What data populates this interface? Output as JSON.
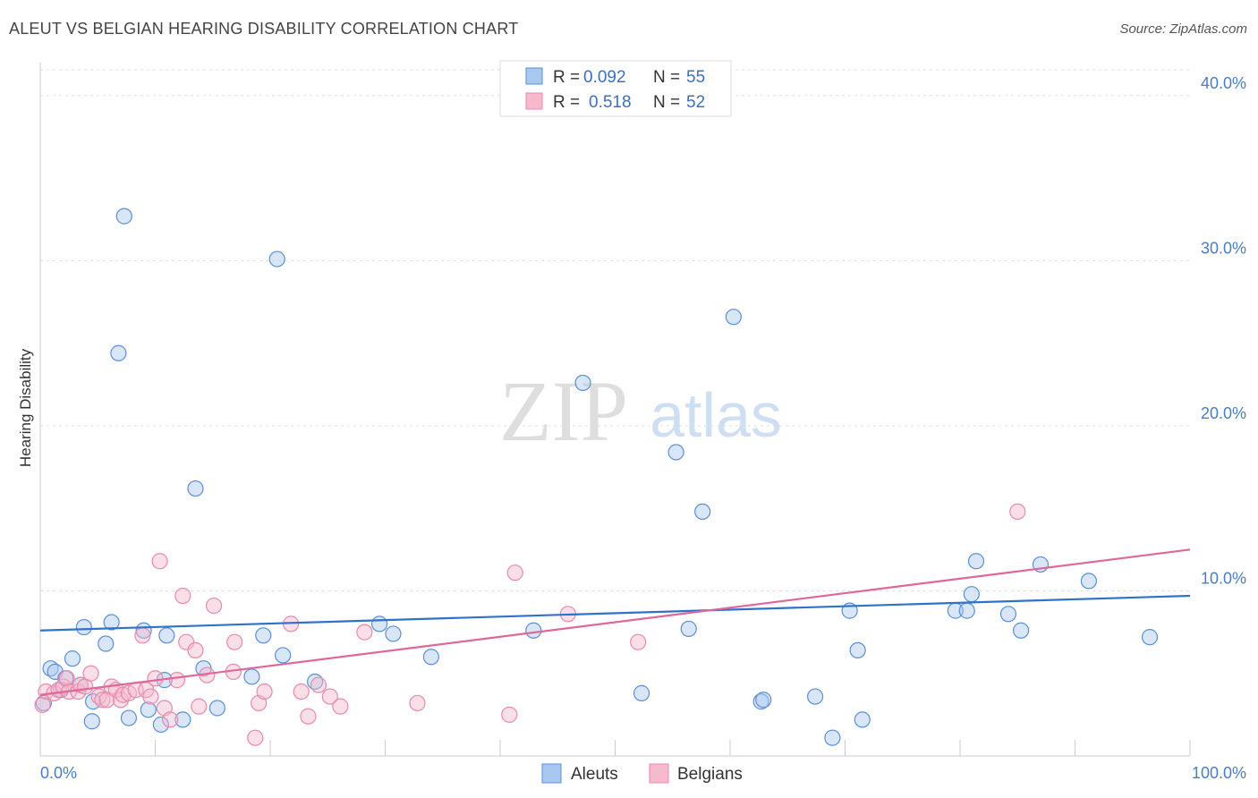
{
  "header": {
    "title": "ALEUT VS BELGIAN HEARING DISABILITY CORRELATION CHART",
    "source": "Source: ZipAtlas.com"
  },
  "watermark": {
    "zip": "ZIP",
    "atlas": "atlas"
  },
  "colors": {
    "aleut_fill": "#a9c8f0",
    "aleut_stroke": "#5b8fd6",
    "aleut_line": "#2f72c9",
    "belgian_fill": "#f7b9cc",
    "belgian_stroke": "#e88aa9",
    "belgian_line": "#e0679a",
    "tick_text": "#4a7cc7"
  },
  "legend": {
    "rows": [
      {
        "r_label": "R =",
        "r_value": "0.092",
        "n_label": "N =",
        "n_value": "55"
      },
      {
        "r_label": "R =",
        "r_value": "0.518",
        "n_label": "N =",
        "n_value": "52"
      }
    ]
  },
  "chart_data": {
    "type": "scatter",
    "title": "ALEUT VS BELGIAN HEARING DISABILITY CORRELATION CHART",
    "xlabel": "",
    "ylabel": "Hearing Disability",
    "xlim": [
      0,
      100
    ],
    "ylim": [
      0,
      42
    ],
    "x_tick_labels": [
      "0.0%",
      "100.0%"
    ],
    "y_ticks": [
      10,
      20,
      30,
      40
    ],
    "y_tick_labels": [
      "10.0%",
      "20.0%",
      "30.0%",
      "40.0%"
    ],
    "grid": true,
    "legend_position": "top-center",
    "series": [
      {
        "name": "Aleuts",
        "r": 0.092,
        "n": 55,
        "trend": {
          "x": [
            0,
            100
          ],
          "y": [
            7.6,
            9.7
          ]
        },
        "points": [
          [
            0.3,
            3.2
          ],
          [
            0.9,
            5.3
          ],
          [
            1.3,
            5.1
          ],
          [
            1.8,
            4.0
          ],
          [
            2.2,
            4.7
          ],
          [
            2.8,
            5.9
          ],
          [
            3.5,
            4.3
          ],
          [
            3.8,
            7.8
          ],
          [
            4.5,
            2.1
          ],
          [
            4.6,
            3.3
          ],
          [
            5.7,
            6.8
          ],
          [
            6.2,
            8.1
          ],
          [
            6.8,
            24.4
          ],
          [
            7.3,
            32.7
          ],
          [
            7.7,
            2.3
          ],
          [
            9.0,
            7.6
          ],
          [
            9.4,
            2.8
          ],
          [
            10.5,
            1.9
          ],
          [
            10.8,
            4.6
          ],
          [
            11.0,
            7.3
          ],
          [
            12.4,
            2.2
          ],
          [
            13.5,
            16.2
          ],
          [
            14.2,
            5.3
          ],
          [
            15.4,
            2.9
          ],
          [
            18.4,
            4.8
          ],
          [
            19.4,
            7.3
          ],
          [
            20.6,
            30.1
          ],
          [
            21.1,
            6.1
          ],
          [
            23.9,
            4.5
          ],
          [
            29.5,
            8.0
          ],
          [
            30.7,
            7.4
          ],
          [
            34.0,
            6.0
          ],
          [
            42.9,
            7.6
          ],
          [
            47.2,
            22.6
          ],
          [
            52.3,
            3.8
          ],
          [
            55.3,
            18.4
          ],
          [
            56.4,
            7.7
          ],
          [
            57.6,
            14.8
          ],
          [
            60.3,
            26.6
          ],
          [
            62.7,
            3.3
          ],
          [
            62.9,
            3.4
          ],
          [
            67.4,
            3.6
          ],
          [
            68.9,
            1.1
          ],
          [
            70.4,
            8.8
          ],
          [
            71.1,
            6.4
          ],
          [
            71.5,
            2.2
          ],
          [
            79.6,
            8.8
          ],
          [
            80.6,
            8.8
          ],
          [
            81.0,
            9.8
          ],
          [
            81.4,
            11.8
          ],
          [
            84.2,
            8.6
          ],
          [
            85.3,
            7.6
          ],
          [
            87.0,
            11.6
          ],
          [
            91.2,
            10.6
          ],
          [
            96.5,
            7.2
          ]
        ]
      },
      {
        "name": "Belgians",
        "r": 0.518,
        "n": 52,
        "trend": {
          "x": [
            0,
            100
          ],
          "y": [
            3.7,
            12.5
          ]
        },
        "points": [
          [
            0.2,
            3.1
          ],
          [
            0.5,
            3.9
          ],
          [
            1.2,
            3.8
          ],
          [
            1.6,
            4.0
          ],
          [
            2.0,
            4.2
          ],
          [
            2.3,
            4.7
          ],
          [
            2.5,
            3.9
          ],
          [
            3.3,
            3.9
          ],
          [
            3.5,
            4.3
          ],
          [
            3.9,
            4.2
          ],
          [
            4.4,
            5.0
          ],
          [
            5.1,
            3.6
          ],
          [
            5.4,
            3.4
          ],
          [
            5.8,
            3.4
          ],
          [
            6.2,
            4.2
          ],
          [
            6.6,
            4.0
          ],
          [
            7.0,
            3.4
          ],
          [
            7.2,
            3.7
          ],
          [
            7.7,
            3.8
          ],
          [
            8.3,
            4.0
          ],
          [
            8.9,
            7.3
          ],
          [
            9.2,
            4.0
          ],
          [
            9.6,
            3.6
          ],
          [
            10.0,
            4.7
          ],
          [
            10.4,
            11.8
          ],
          [
            10.8,
            2.9
          ],
          [
            11.3,
            2.2
          ],
          [
            11.9,
            4.6
          ],
          [
            12.4,
            9.7
          ],
          [
            12.7,
            6.9
          ],
          [
            13.5,
            6.4
          ],
          [
            13.8,
            3.0
          ],
          [
            14.5,
            4.9
          ],
          [
            15.1,
            9.1
          ],
          [
            16.8,
            5.1
          ],
          [
            16.9,
            6.9
          ],
          [
            18.7,
            1.1
          ],
          [
            19.0,
            3.2
          ],
          [
            19.5,
            3.9
          ],
          [
            21.8,
            8.0
          ],
          [
            22.7,
            3.9
          ],
          [
            23.3,
            2.4
          ],
          [
            24.2,
            4.3
          ],
          [
            25.2,
            3.6
          ],
          [
            26.1,
            3.0
          ],
          [
            28.2,
            7.5
          ],
          [
            32.8,
            3.2
          ],
          [
            40.8,
            2.5
          ],
          [
            41.3,
            11.1
          ],
          [
            45.9,
            8.6
          ],
          [
            52.0,
            6.9
          ],
          [
            85.0,
            14.8
          ]
        ]
      }
    ]
  },
  "bottom_legend": {
    "items": [
      "Aleuts",
      "Belgians"
    ]
  }
}
